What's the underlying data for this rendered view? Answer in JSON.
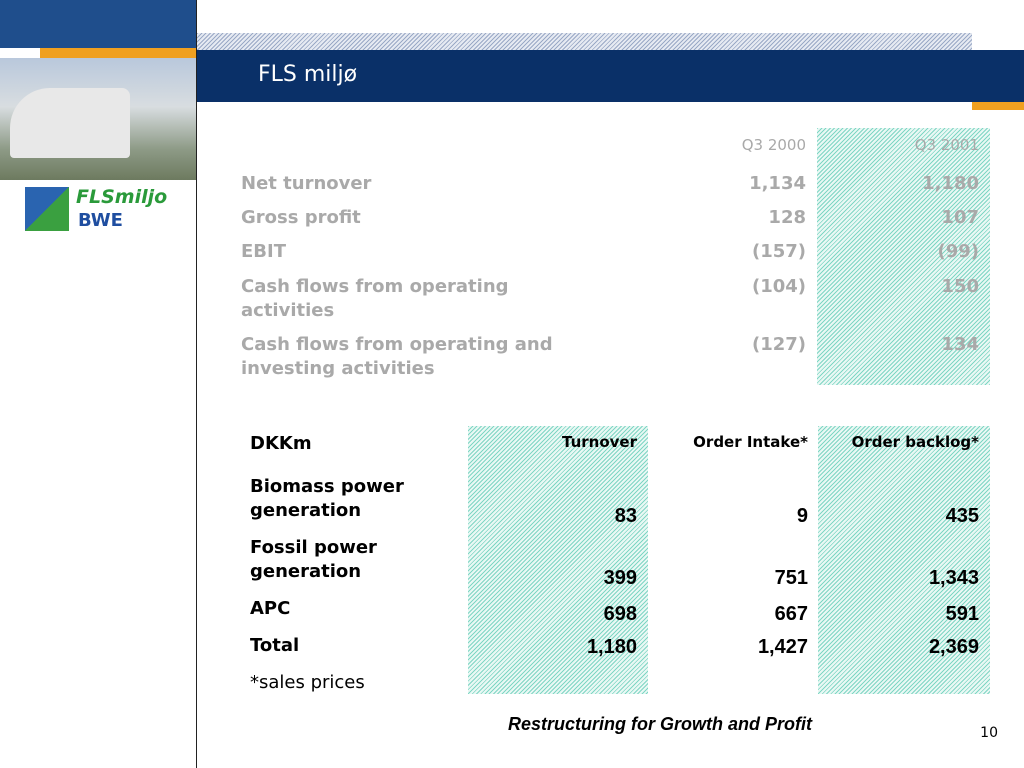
{
  "header": {
    "title": "FLS miljø"
  },
  "logo": {
    "lines": [
      "FLSmiljo",
      "BWE"
    ]
  },
  "summary_table": {
    "columns": [
      "Q3 2000",
      "Q3 2001"
    ],
    "rows": [
      [
        "Net turnover",
        "1,134",
        "1,180"
      ],
      [
        "Gross profit",
        "128",
        "107"
      ],
      [
        "EBIT",
        "(157)",
        "(99)"
      ],
      [
        "Cash flows from operating activities",
        "(104)",
        "150"
      ],
      [
        "Cash flows from operating and investing activities",
        "(127)",
        "134"
      ]
    ]
  },
  "segment_table": {
    "columns": [
      "DKKm",
      "Turnover",
      "Order Intake*",
      "Order backlog*"
    ],
    "rows": [
      [
        "Biomass power generation",
        "83",
        "9",
        "435"
      ],
      [
        "Fossil power generation",
        "399",
        "751",
        "1,343"
      ],
      [
        "APC",
        "698",
        "667",
        "591"
      ],
      [
        "Total",
        "1,180",
        "1,427",
        "2,369"
      ]
    ],
    "footnote": "*sales prices"
  },
  "footer": {
    "tagline": "Restructuring for Growth and Profit",
    "page_number": "10"
  }
}
